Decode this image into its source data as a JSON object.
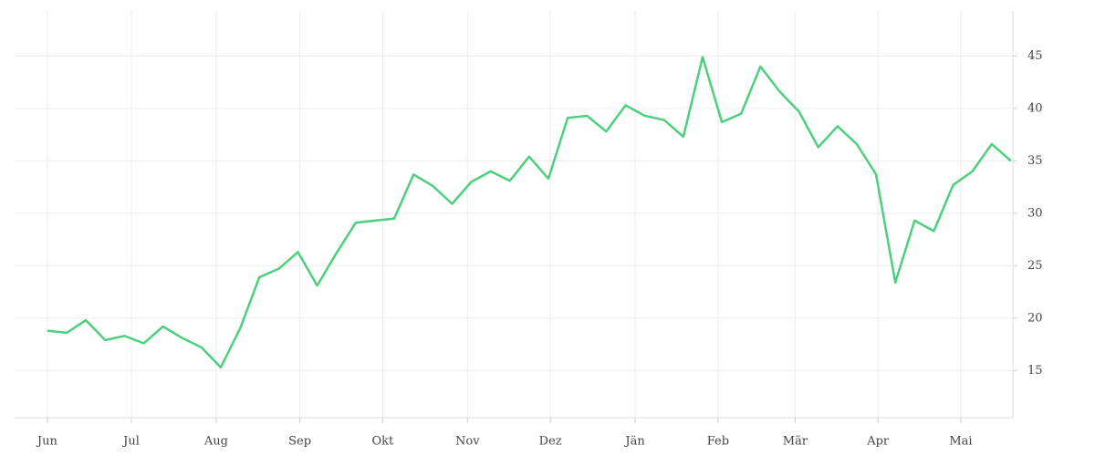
{
  "chart_data": {
    "type": "line",
    "x": [
      0,
      1,
      2,
      3,
      4,
      5,
      6,
      7,
      8,
      9,
      10,
      11,
      12,
      13,
      14,
      15,
      16,
      17,
      18,
      19,
      20,
      21,
      22,
      23,
      24,
      25,
      26,
      27,
      28,
      29,
      30,
      31,
      32,
      33,
      34,
      35,
      36,
      37,
      38,
      39,
      40,
      41,
      42,
      43,
      44,
      45,
      46,
      47,
      48,
      49,
      50
    ],
    "series": [
      {
        "color": "#4cd07d",
        "values": [
          18.8,
          18.6,
          19.8,
          17.9,
          18.3,
          17.6,
          19.2,
          18.1,
          17.2,
          15.3,
          19.0,
          23.9,
          24.7,
          26.3,
          23.1,
          26.2,
          29.1,
          29.3,
          29.5,
          33.7,
          32.6,
          30.9,
          33.0,
          34.0,
          33.1,
          35.4,
          33.3,
          39.1,
          39.3,
          37.8,
          40.3,
          39.3,
          38.9,
          37.3,
          44.9,
          38.7,
          39.5,
          44.0,
          41.6,
          39.7,
          36.3,
          38.3,
          36.6,
          33.7,
          23.4,
          29.3,
          28.3,
          32.7,
          34.0,
          36.6,
          35.0
        ]
      }
    ],
    "xlim": [
      -1.7,
      50.1
    ],
    "xticks": [
      {
        "value": 0,
        "label": "Jun"
      },
      {
        "value": 4.36,
        "label": "Jul"
      },
      {
        "value": 8.76,
        "label": "Aug"
      },
      {
        "value": 13.1,
        "label": "Sep"
      },
      {
        "value": 17.4,
        "label": "Okt"
      },
      {
        "value": 21.8,
        "label": "Nov"
      },
      {
        "value": 26.1,
        "label": "Dez"
      },
      {
        "value": 30.5,
        "label": "Jän"
      },
      {
        "value": 34.8,
        "label": "Feb"
      },
      {
        "value": 38.8,
        "label": "Mär"
      },
      {
        "value": 43.1,
        "label": "Apr"
      },
      {
        "value": 47.4,
        "label": "Mai"
      }
    ],
    "ylim": [
      10.5,
      49.3
    ],
    "yticks": [
      15,
      20,
      25,
      30,
      35,
      40,
      45
    ],
    "grid": true
  }
}
